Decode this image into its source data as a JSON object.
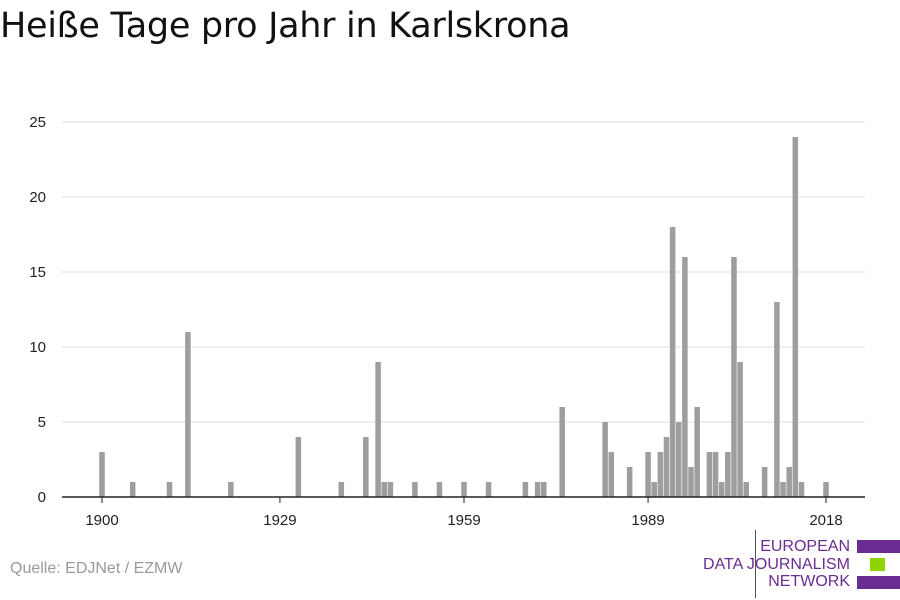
{
  "title": "Heiße Tage pro Jahr in Karlskrona",
  "source": "Quelle: EDJNet / EZMW",
  "logo": {
    "line1": "EUROPEAN",
    "line2": "DATA JOURNALISM",
    "line3": "NETWORK",
    "colors": {
      "purple": "#6a2c91",
      "green": "#8fd400"
    }
  },
  "colors": {
    "bar": "#9e9e9e",
    "grid": "#dddddd",
    "axis": "#222222"
  },
  "chart_data": {
    "type": "bar",
    "title": "Heiße Tage pro Jahr in Karlskrona",
    "xlabel": "",
    "ylabel": "",
    "xlim": [
      1900,
      2018
    ],
    "ylim": [
      0,
      25
    ],
    "x_ticks": [
      1900,
      1929,
      1959,
      1989,
      2018
    ],
    "y_ticks": [
      0,
      5,
      10,
      15,
      20,
      25
    ],
    "grid": true,
    "legend": "none",
    "x": [
      1900,
      1905,
      1911,
      1914,
      1921,
      1932,
      1939,
      1943,
      1945,
      1946,
      1947,
      1951,
      1955,
      1959,
      1963,
      1969,
      1971,
      1972,
      1975,
      1982,
      1983,
      1986,
      1989,
      1990,
      1991,
      1992,
      1993,
      1994,
      1995,
      1996,
      1997,
      1999,
      2000,
      2001,
      2002,
      2003,
      2004,
      2005,
      2008,
      2010,
      2011,
      2012,
      2013,
      2014,
      2018
    ],
    "values": [
      3,
      1,
      1,
      11,
      1,
      4,
      1,
      4,
      9,
      1,
      1,
      1,
      1,
      1,
      1,
      1,
      1,
      1,
      6,
      5,
      3,
      2,
      3,
      1,
      3,
      4,
      18,
      5,
      16,
      2,
      6,
      3,
      3,
      1,
      3,
      16,
      9,
      1,
      2,
      13,
      1,
      2,
      24,
      1,
      1
    ]
  }
}
